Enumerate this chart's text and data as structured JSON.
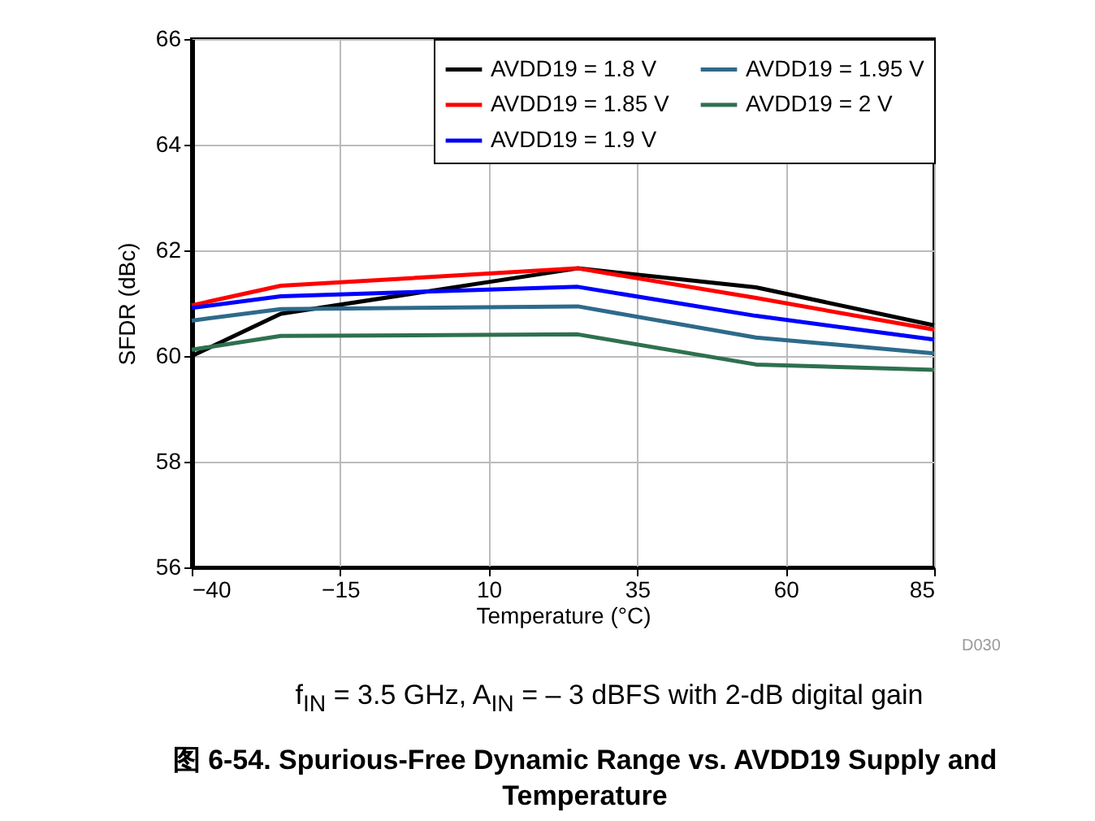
{
  "chart_data": {
    "type": "line",
    "title": "图 6-54. Spurious-Free Dynamic Range vs. AVDD19 Supply and Temperature",
    "subtitle": "f$_{IN}$ = 3.5 GHz, A$_{IN}$ = – 3 dBFS with 2-dB digital gain",
    "xlabel": "Temperature (°C)",
    "ylabel": "SFDR (dBc)",
    "annotations": [
      "D030"
    ],
    "x": [
      -40,
      -25,
      25,
      55,
      85
    ],
    "series": [
      {
        "name": "AVDD19 = 1.8 V",
        "color": "#000000",
        "values": [
          60.0,
          60.8,
          61.66,
          61.3,
          60.58
        ]
      },
      {
        "name": "AVDD19 = 1.85 V",
        "color": "#ff0000",
        "values": [
          60.96,
          61.33,
          61.66,
          61.1,
          60.5
        ]
      },
      {
        "name": "AVDD19 = 1.9 V",
        "color": "#0000ff",
        "values": [
          60.91,
          61.13,
          61.31,
          60.76,
          60.31
        ]
      },
      {
        "name": "AVDD19 = 1.95 V",
        "color": "#2e6a8a",
        "values": [
          60.67,
          60.89,
          60.94,
          60.35,
          60.05
        ]
      },
      {
        "name": "AVDD19 = 2 V",
        "color": "#2e7050",
        "values": [
          60.12,
          60.38,
          60.41,
          59.84,
          59.74
        ]
      }
    ],
    "xlim": [
      -40,
      85
    ],
    "xticks": [
      -40,
      -15,
      10,
      35,
      60,
      85
    ],
    "ylim": [
      56,
      66
    ],
    "yticks": [
      56,
      58,
      60,
      62,
      64,
      66
    ],
    "grid": true,
    "legend": "top right",
    "marker": "none",
    "line_style": "solid"
  }
}
